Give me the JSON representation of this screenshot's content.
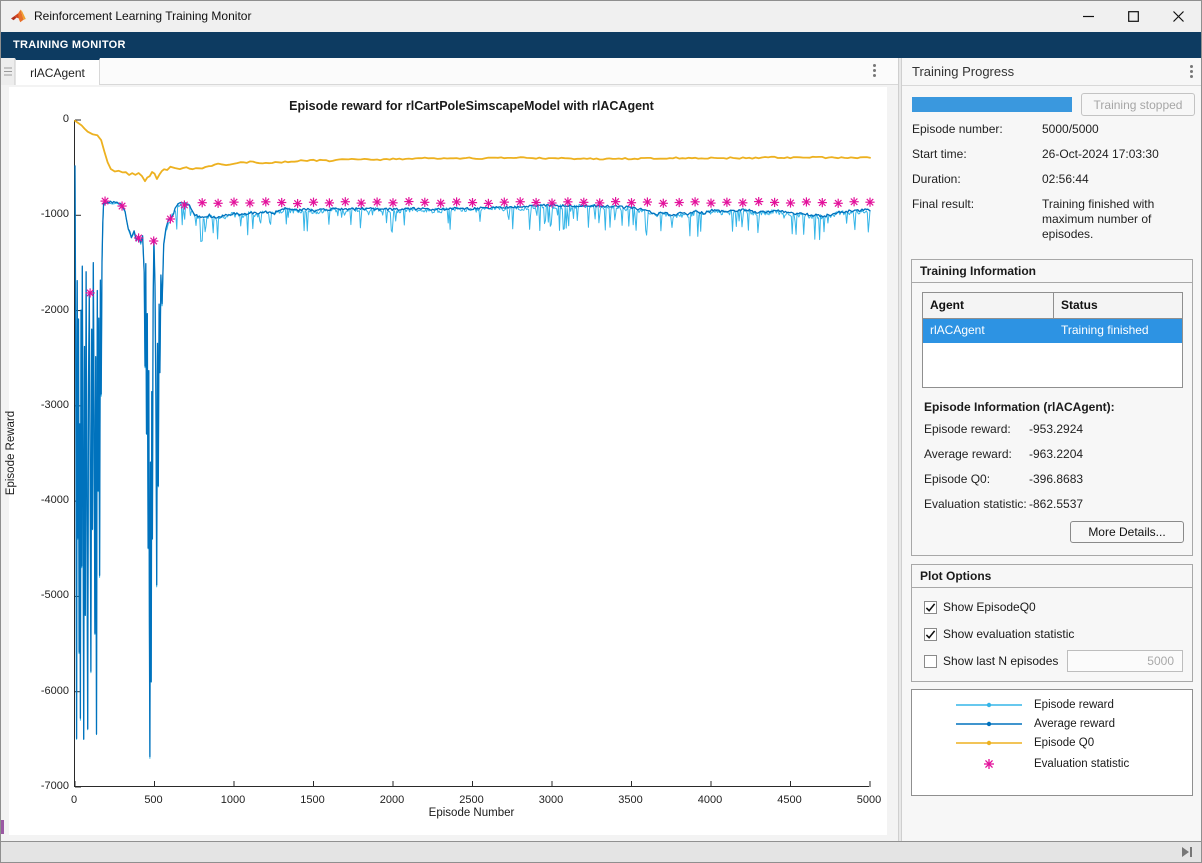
{
  "window": {
    "title": "Reinforcement Learning Training Monitor"
  },
  "toolstrip": {
    "tab_label": "TRAINING MONITOR"
  },
  "document_tab": {
    "label": "rlACAgent"
  },
  "chart": {
    "title": "Episode reward for rlCartPoleSimscapeModel with rlACAgent",
    "xlabel": "Episode Number",
    "ylabel": "Episode Reward",
    "xlim": [
      0,
      5000
    ],
    "ylim": [
      -7000,
      0
    ],
    "x_ticks": [
      0,
      500,
      1000,
      1500,
      2000,
      2500,
      3000,
      3500,
      4000,
      4500,
      5000
    ],
    "y_ticks": [
      0,
      -1000,
      -2000,
      -3000,
      -4000,
      -5000,
      -6000,
      -7000
    ],
    "axis_color": "#2a2a2a",
    "series": {
      "episode_reward": {
        "name": "Episode reward",
        "color": "#35b5e8",
        "keypoints": [
          [
            0,
            -500
          ],
          [
            5,
            -2600
          ],
          [
            10,
            -6500
          ],
          [
            14,
            -1700
          ],
          [
            18,
            -4400
          ],
          [
            22,
            -2100
          ],
          [
            26,
            -5600
          ],
          [
            30,
            -3200
          ],
          [
            34,
            -6300
          ],
          [
            38,
            -2000
          ],
          [
            42,
            -4700
          ],
          [
            46,
            -1550
          ],
          [
            50,
            -3500
          ],
          [
            55,
            -6500
          ],
          [
            60,
            -2400
          ],
          [
            65,
            -5200
          ],
          [
            70,
            -1600
          ],
          [
            75,
            -4000
          ],
          [
            80,
            -6400
          ],
          [
            85,
            -2800
          ],
          [
            90,
            -1850
          ],
          [
            95,
            -3600
          ],
          [
            100,
            -5800
          ],
          [
            105,
            -2200
          ],
          [
            110,
            -4300
          ],
          [
            115,
            -1520
          ],
          [
            120,
            -3100
          ],
          [
            125,
            -5400
          ],
          [
            130,
            -2500
          ],
          [
            135,
            -6450
          ],
          [
            140,
            -1800
          ],
          [
            145,
            -3900
          ],
          [
            150,
            -2100
          ],
          [
            155,
            -4800
          ],
          [
            160,
            -1700
          ],
          [
            165,
            -2900
          ],
          [
            170,
            -1500
          ],
          [
            175,
            -1100
          ],
          [
            180,
            -890
          ],
          [
            205,
            -868
          ],
          [
            235,
            -882
          ],
          [
            265,
            -872
          ],
          [
            295,
            -908
          ],
          [
            315,
            -965
          ],
          [
            335,
            -1150
          ],
          [
            355,
            -1235
          ],
          [
            372,
            -1185
          ],
          [
            386,
            -1272
          ],
          [
            400,
            -1238
          ],
          [
            414,
            -1305
          ],
          [
            425,
            -1215
          ],
          [
            435,
            -1620
          ],
          [
            440,
            -2600
          ],
          [
            445,
            -1520
          ],
          [
            450,
            -3300
          ],
          [
            455,
            -2050
          ],
          [
            460,
            -4500
          ],
          [
            464,
            -2650
          ],
          [
            468,
            -5300
          ],
          [
            471,
            -6700
          ],
          [
            475,
            -3600
          ],
          [
            479,
            -5900
          ],
          [
            483,
            -2850
          ],
          [
            487,
            -4400
          ],
          [
            491,
            -1950
          ],
          [
            496,
            -1265
          ],
          [
            503,
            -1750
          ],
          [
            509,
            -2950
          ],
          [
            514,
            -4900
          ],
          [
            519,
            -2350
          ],
          [
            524,
            -3850
          ],
          [
            529,
            -1950
          ],
          [
            534,
            -2650
          ],
          [
            540,
            -1650
          ],
          [
            548,
            -1950
          ],
          [
            558,
            -1320
          ],
          [
            572,
            -1160
          ],
          [
            588,
            -1065
          ],
          [
            604,
            -1030
          ],
          [
            620,
            -985
          ],
          [
            640,
            -905
          ],
          [
            662,
            -882
          ],
          [
            690,
            -888
          ],
          [
            720,
            -905
          ],
          [
            755,
            -1005
          ],
          [
            800,
            -1035
          ],
          [
            845,
            -1012
          ],
          [
            885,
            -1042
          ],
          [
            920,
            -1022
          ],
          [
            960,
            -1002
          ],
          [
            1000,
            -992
          ],
          [
            1050,
            -1002
          ],
          [
            1100,
            -982
          ],
          [
            1150,
            -992
          ],
          [
            1200,
            -977
          ],
          [
            1255,
            -987
          ],
          [
            1305,
            -942
          ],
          [
            1355,
            -952
          ],
          [
            1405,
            -957
          ],
          [
            1455,
            -947
          ],
          [
            1505,
            -962
          ],
          [
            1555,
            -952
          ],
          [
            1605,
            -947
          ],
          [
            1705,
            -952
          ],
          [
            1805,
            -942
          ],
          [
            1905,
            -947
          ],
          [
            2005,
            -952
          ],
          [
            2105,
            -942
          ],
          [
            2205,
            -947
          ],
          [
            2305,
            -952
          ],
          [
            2405,
            -937
          ],
          [
            2505,
            -942
          ],
          [
            2605,
            -932
          ],
          [
            2705,
            -927
          ],
          [
            2805,
            -922
          ],
          [
            2905,
            -912
          ],
          [
            3005,
            -907
          ],
          [
            3105,
            -912
          ],
          [
            3205,
            -907
          ],
          [
            3305,
            -917
          ],
          [
            3405,
            -922
          ],
          [
            3505,
            -932
          ],
          [
            3605,
            -962
          ],
          [
            3655,
            -1002
          ],
          [
            3705,
            -982
          ],
          [
            3755,
            -1012
          ],
          [
            3805,
            -992
          ],
          [
            3855,
            -1002
          ],
          [
            3905,
            -972
          ],
          [
            3955,
            -992
          ],
          [
            4005,
            -962
          ],
          [
            4105,
            -972
          ],
          [
            4205,
            -952
          ],
          [
            4305,
            -982
          ],
          [
            4405,
            -962
          ],
          [
            4505,
            -992
          ],
          [
            4605,
            -1002
          ],
          [
            4705,
            -1022
          ],
          [
            4805,
            -982
          ],
          [
            4905,
            -962
          ],
          [
            5000,
            -953.29
          ]
        ]
      },
      "average_reward": {
        "name": "Average reward",
        "color": "#0072bd",
        "final_value": -963.2204
      },
      "episode_q0": {
        "name": "Episode Q0",
        "color": "#edb120",
        "keypoints": [
          [
            0,
            -8
          ],
          [
            40,
            -55
          ],
          [
            80,
            -120
          ],
          [
            110,
            -148
          ],
          [
            140,
            -163
          ],
          [
            165,
            -210
          ],
          [
            185,
            -330
          ],
          [
            205,
            -450
          ],
          [
            225,
            -520
          ],
          [
            250,
            -545
          ],
          [
            275,
            -530
          ],
          [
            300,
            -558
          ],
          [
            320,
            -542
          ],
          [
            340,
            -570
          ],
          [
            360,
            -552
          ],
          [
            380,
            -572
          ],
          [
            400,
            -562
          ],
          [
            420,
            -585
          ],
          [
            440,
            -640
          ],
          [
            455,
            -605
          ],
          [
            470,
            -585
          ],
          [
            485,
            -548
          ],
          [
            500,
            -562
          ],
          [
            515,
            -615
          ],
          [
            530,
            -578
          ],
          [
            545,
            -540
          ],
          [
            560,
            -522
          ],
          [
            580,
            -532
          ],
          [
            600,
            -495
          ],
          [
            630,
            -508
          ],
          [
            660,
            -515
          ],
          [
            700,
            -502
          ],
          [
            740,
            -518
          ],
          [
            780,
            -508
          ],
          [
            820,
            -498
          ],
          [
            860,
            -478
          ],
          [
            900,
            -462
          ],
          [
            950,
            -472
          ],
          [
            1000,
            -452
          ],
          [
            1100,
            -442
          ],
          [
            1200,
            -452
          ],
          [
            1300,
            -442
          ],
          [
            1400,
            -432
          ],
          [
            1500,
            -422
          ],
          [
            1600,
            -427
          ],
          [
            1700,
            -417
          ],
          [
            1800,
            -412
          ],
          [
            1900,
            -417
          ],
          [
            2000,
            -412
          ],
          [
            2200,
            -402
          ],
          [
            2400,
            -400
          ],
          [
            2600,
            -402
          ],
          [
            2800,
            -396
          ],
          [
            3000,
            -404
          ],
          [
            3200,
            -404
          ],
          [
            3400,
            -409
          ],
          [
            3600,
            -401
          ],
          [
            3800,
            -399
          ],
          [
            4000,
            -399
          ],
          [
            4200,
            -399
          ],
          [
            4400,
            -394
          ],
          [
            4600,
            -394
          ],
          [
            4800,
            -396
          ],
          [
            5000,
            -396.87
          ]
        ]
      },
      "evaluation": {
        "name": "Evaluation statistic",
        "color": "#e3119b",
        "points": [
          [
            95,
            -1815
          ],
          [
            189,
            -851
          ],
          [
            296,
            -903
          ],
          [
            400,
            -1238
          ],
          [
            495,
            -1270
          ],
          [
            600,
            -1039
          ],
          [
            688,
            -892
          ],
          [
            800,
            -868
          ],
          [
            900,
            -874
          ],
          [
            1000,
            -862
          ],
          [
            1100,
            -871
          ],
          [
            1200,
            -859
          ],
          [
            1300,
            -866
          ],
          [
            1400,
            -877
          ],
          [
            1500,
            -863
          ],
          [
            1600,
            -870
          ],
          [
            1700,
            -858
          ],
          [
            1800,
            -872
          ],
          [
            1900,
            -861
          ],
          [
            2000,
            -869
          ],
          [
            2100,
            -856
          ],
          [
            2200,
            -864
          ],
          [
            2300,
            -873
          ],
          [
            2400,
            -860
          ],
          [
            2500,
            -867
          ],
          [
            2600,
            -875
          ],
          [
            2700,
            -862
          ],
          [
            2800,
            -858
          ],
          [
            2900,
            -866
          ],
          [
            3000,
            -871
          ],
          [
            3100,
            -859
          ],
          [
            3200,
            -864
          ],
          [
            3300,
            -870
          ],
          [
            3400,
            -857
          ],
          [
            3500,
            -868
          ],
          [
            3600,
            -861
          ],
          [
            3700,
            -874
          ],
          [
            3800,
            -866
          ],
          [
            3900,
            -859
          ],
          [
            4000,
            -872
          ],
          [
            4100,
            -863
          ],
          [
            4200,
            -869
          ],
          [
            4300,
            -856
          ],
          [
            4400,
            -865
          ],
          [
            4500,
            -871
          ],
          [
            4600,
            -860
          ],
          [
            4700,
            -867
          ],
          [
            4800,
            -874
          ],
          [
            4900,
            -858
          ],
          [
            5000,
            -862.5537
          ]
        ]
      }
    }
  },
  "panel": {
    "title": "Training Progress",
    "progress": {
      "percent": 100,
      "color": "#3a98de",
      "button_label": "Training stopped"
    },
    "fields": [
      {
        "label": "Episode number:",
        "value": "5000/5000"
      },
      {
        "label": "Start time:",
        "value": "26-Oct-2024 17:03:30"
      },
      {
        "label": "Duration:",
        "value": "02:56:44"
      },
      {
        "label": "Final result:",
        "value": "Training finished with maximum number of episodes."
      }
    ],
    "training_information": {
      "title": "Training Information",
      "table": {
        "columns": [
          "Agent",
          "Status"
        ],
        "rows": [
          [
            "rlACAgent",
            "Training finished"
          ]
        ],
        "selection_color": "#2d93e3"
      },
      "episode_info_title": "Episode Information (rlACAgent):",
      "fields": [
        {
          "label": "Episode reward:",
          "value": "-953.2924"
        },
        {
          "label": "Average reward:",
          "value": "-963.2204"
        },
        {
          "label": "Episode Q0:",
          "value": "-396.8683"
        },
        {
          "label": "Evaluation statistic:",
          "value": "-862.5537"
        }
      ],
      "more_details_label": "More Details..."
    },
    "plot_options": {
      "title": "Plot Options",
      "options": [
        {
          "label": "Show EpisodeQ0",
          "checked": true
        },
        {
          "label": "Show evaluation statistic",
          "checked": true
        },
        {
          "label": "Show last N episodes",
          "checked": false
        }
      ],
      "last_n_value": "5000"
    },
    "legend": {
      "entries": [
        {
          "label": "Episode reward",
          "color": "#35b5e8",
          "marker": "line-dot"
        },
        {
          "label": "Average reward",
          "color": "#0072bd",
          "marker": "line-dot"
        },
        {
          "label": "Episode Q0",
          "color": "#edb120",
          "marker": "line-dot"
        },
        {
          "label": "Evaluation statistic",
          "color": "#e3119b",
          "marker": "asterisk"
        }
      ]
    }
  }
}
